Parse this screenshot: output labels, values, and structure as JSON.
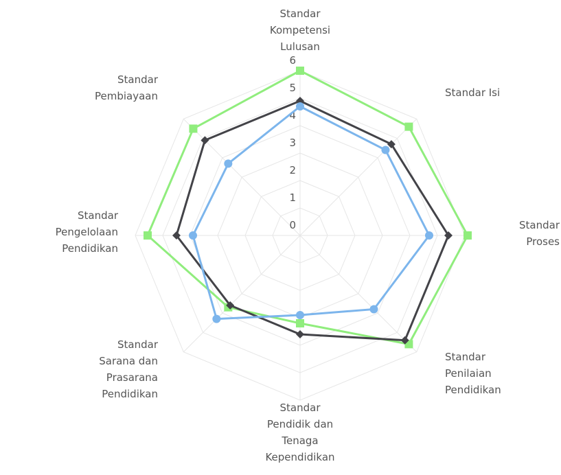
{
  "chart_data": {
    "type": "radar",
    "categories": [
      "Standar Kompetensi Lulusan",
      "Standar Isi",
      "Standar Proses",
      "Standar Penilaian Pendidikan",
      "Standar Pendidik dan Tenaga Kependidikan",
      "Standar Sarana dan Prasarana Pendidikan",
      "Standar Pengelolaan Pendidikan",
      "Standar Pembiayaan"
    ],
    "series": [
      {
        "color": "#90ed7d",
        "marker": "square",
        "values": [
          6,
          5.6,
          6.1,
          5.6,
          3.2,
          3.7,
          5.55,
          5.5
        ]
      },
      {
        "color": "#434348",
        "marker": "diamond",
        "values": [
          4.9,
          4.7,
          5.4,
          5.4,
          3.6,
          3.6,
          4.5,
          4.9
        ]
      },
      {
        "color": "#7cb5ec",
        "marker": "circle",
        "values": [
          4.7,
          4.4,
          4.7,
          3.8,
          2.9,
          4.3,
          3.9,
          3.7
        ]
      }
    ],
    "ylim": [
      0,
      6
    ],
    "yticks": [
      0,
      1,
      2,
      3,
      4,
      5,
      6
    ],
    "grid": true
  }
}
